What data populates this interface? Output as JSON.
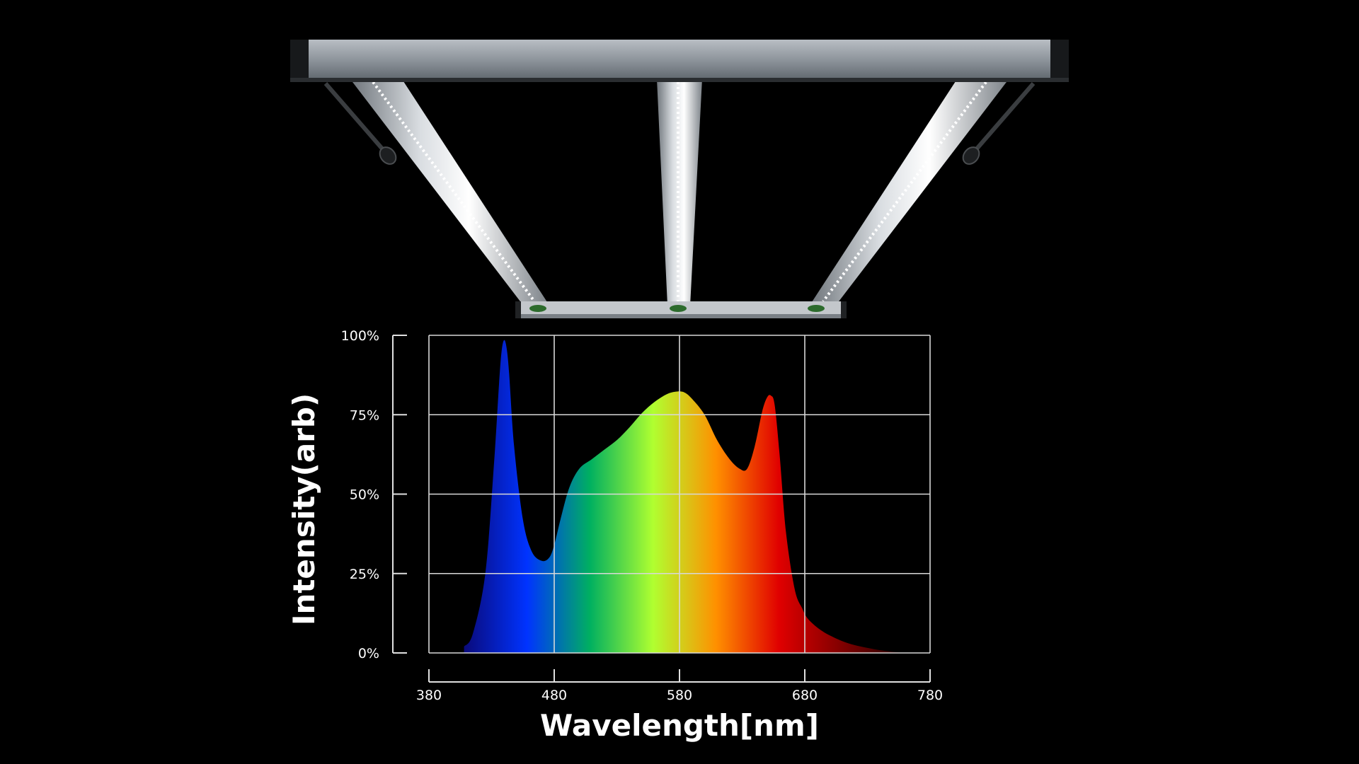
{
  "chart_data": {
    "type": "area",
    "title": "",
    "xlabel": "Wavelength[nm]",
    "ylabel": "Intensity(arb)",
    "xlim": [
      380,
      780
    ],
    "ylim": [
      0,
      100
    ],
    "x_ticks": [
      "380",
      "480",
      "580",
      "680",
      "780"
    ],
    "y_ticks": [
      "100%",
      "75%",
      "50%",
      "25%",
      "0%"
    ],
    "grid": true,
    "series": [
      {
        "x": [
          408,
          415,
          425,
          432,
          436,
          438,
          440,
          442,
          444,
          448,
          455,
          462,
          470,
          476,
          480,
          485,
          492,
          500,
          510,
          520,
          530,
          540,
          550,
          560,
          570,
          578,
          584,
          590,
          600,
          610,
          620,
          628,
          634,
          640,
          646,
          650,
          653,
          656,
          660,
          665,
          672,
          678,
          682,
          690,
          700,
          715,
          735,
          752,
          760
        ],
        "y": [
          2,
          6,
          25,
          60,
          85,
          95,
          98.5,
          96,
          88,
          65,
          42,
          32,
          29,
          30,
          34,
          42,
          52,
          58,
          61,
          64,
          67,
          71,
          75.5,
          79,
          81.5,
          82.3,
          82,
          80,
          75,
          67,
          61,
          58,
          58,
          65,
          76,
          80.5,
          81,
          78,
          62,
          38,
          20,
          14,
          11,
          8,
          5.5,
          3,
          1.2,
          0.3,
          0
        ]
      }
    ],
    "fill_gradient": [
      "#0a0a7a",
      "#0033ff",
      "#00b060",
      "#b0ff30",
      "#ff9000",
      "#e00000",
      "#800000",
      "#200000"
    ]
  }
}
